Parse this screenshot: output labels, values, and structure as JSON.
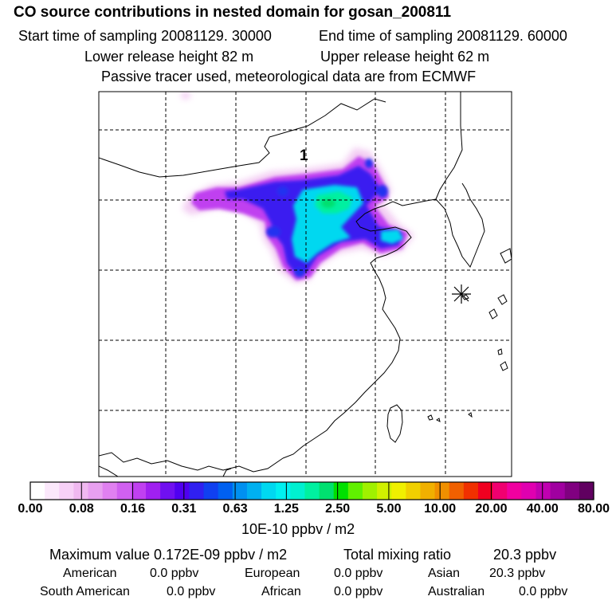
{
  "header": {
    "title": "CO  source contributions in nested domain for gosan_200811",
    "start_label": "Start time of sampling 20081129. 30000",
    "end_label": "End time of sampling 20081129. 60000",
    "lower_label": "Lower release height   82 m",
    "upper_label": "Upper release height   62 m",
    "tracer_label": "Passive tracer used, meteorological data are from ECMWF"
  },
  "map": {
    "marker_label": "1"
  },
  "colorbar": {
    "ticks": [
      "0.00",
      "0.08",
      "0.16",
      "0.31",
      "0.63",
      "1.25",
      "2.50",
      "5.00",
      "10.00",
      "20.00",
      "40.00",
      "80.00"
    ],
    "colors": [
      "#ffffff",
      "#fbe8fb",
      "#f7d0f7",
      "#f0b8f0",
      "#e8a0f0",
      "#e080f0",
      "#d060f0",
      "#c040f0",
      "#a020f0",
      "#7010f0",
      "#5000f0",
      "#3020f0",
      "#1040f0",
      "#0060f0",
      "#0090f0",
      "#00b0f0",
      "#00d8f0",
      "#00f0f0",
      "#00f0d0",
      "#00f0a0",
      "#00e070",
      "#00e000",
      "#60f000",
      "#a0f000",
      "#d0f000",
      "#f0f000",
      "#f0d000",
      "#f0b000",
      "#f09000",
      "#f06000",
      "#f03000",
      "#f00020",
      "#f00070",
      "#f000a0",
      "#e000b0",
      "#c000b0",
      "#a000a0",
      "#800080",
      "#600060"
    ],
    "unit_label": "10E-10 ppbv / m2"
  },
  "summary": {
    "max_label": "Maximum value  0.172E-09 ppbv / m2",
    "total_label": "Total mixing ratio",
    "total_value": "20.3 ppbv",
    "rows": [
      {
        "name": "American",
        "value": "0.0 ppbv"
      },
      {
        "name": "European",
        "value": "0.0 ppbv"
      },
      {
        "name": "Asian",
        "value": "20.3 ppbv"
      },
      {
        "name": "South American",
        "value": "0.0 ppbv"
      },
      {
        "name": "African",
        "value": "0.0 ppbv"
      },
      {
        "name": "Australian",
        "value": "0.0 ppbv"
      }
    ]
  }
}
